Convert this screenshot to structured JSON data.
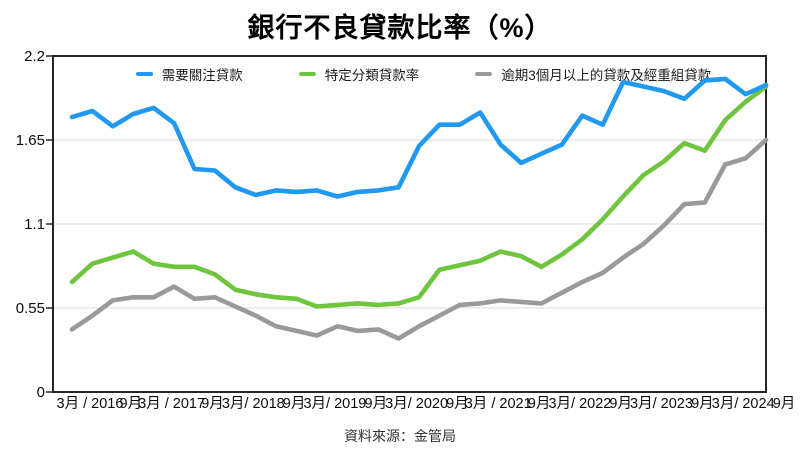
{
  "title": "銀行不良貸款比率（%）",
  "source": "資料來源：金管局",
  "colors": {
    "blue": "#2199f1",
    "green": "#70c53e",
    "gray": "#9a9a9a",
    "grid": "#e2e2e2",
    "border": "#262626",
    "axis_text": "#0c0c0c"
  },
  "chart_data": {
    "type": "line",
    "title": "銀行不良貸款比率（%）",
    "x_frequency": "quarterly",
    "n_points": 35,
    "x_start": "3月/2016",
    "x_end": "9月/2024",
    "x_tick_labels": [
      "3月 / 2016",
      "9月",
      "3月 / 2017",
      "9月",
      "3月/ 2018",
      "9月",
      "3月/ 2019",
      "9月",
      "3月/ 2020",
      "9月",
      "3月 / 2021",
      "9月",
      "3月/ 2022",
      "9月",
      "3月/ 2023",
      "9月",
      "3月/ 2024",
      "9月"
    ],
    "ylim": [
      0,
      2.2
    ],
    "y_ticks": [
      0,
      0.55,
      1.1,
      1.65,
      2.2
    ],
    "y_tick_labels": [
      "0",
      "0.55",
      "1.1",
      "1.65",
      "2.2"
    ],
    "grid": "horizontal",
    "legend_position": "top-inside",
    "series": [
      {
        "name": "需要關注貸款",
        "color": "#2199f1",
        "values": [
          1.8,
          1.84,
          1.74,
          1.82,
          1.86,
          1.76,
          1.46,
          1.45,
          1.34,
          1.29,
          1.32,
          1.31,
          1.32,
          1.28,
          1.31,
          1.32,
          1.34,
          1.61,
          1.75,
          1.75,
          1.83,
          1.62,
          1.5,
          1.56,
          1.62,
          1.81,
          1.75,
          2.03,
          2.0,
          1.97,
          1.92,
          2.04,
          2.05,
          1.95,
          2.01
        ]
      },
      {
        "name": "特定分類貸款率",
        "color": "#70c53e",
        "values": [
          0.72,
          0.84,
          0.88,
          0.92,
          0.84,
          0.82,
          0.82,
          0.77,
          0.67,
          0.64,
          0.62,
          0.61,
          0.56,
          0.57,
          0.58,
          0.57,
          0.58,
          0.62,
          0.8,
          0.83,
          0.86,
          0.92,
          0.89,
          0.82,
          0.9,
          1.0,
          1.13,
          1.28,
          1.42,
          1.51,
          1.63,
          1.58,
          1.78,
          1.9,
          2.0
        ]
      },
      {
        "name": "逾期3個月以上的貸款及經重組貸款",
        "color": "#9a9a9a",
        "values": [
          0.41,
          0.5,
          0.6,
          0.62,
          0.62,
          0.69,
          0.61,
          0.62,
          0.56,
          0.5,
          0.43,
          0.4,
          0.37,
          0.43,
          0.4,
          0.41,
          0.35,
          0.43,
          0.5,
          0.57,
          0.58,
          0.6,
          0.59,
          0.58,
          0.65,
          0.72,
          0.78,
          0.88,
          0.97,
          1.09,
          1.23,
          1.24,
          1.49,
          1.53,
          1.65
        ]
      }
    ]
  }
}
